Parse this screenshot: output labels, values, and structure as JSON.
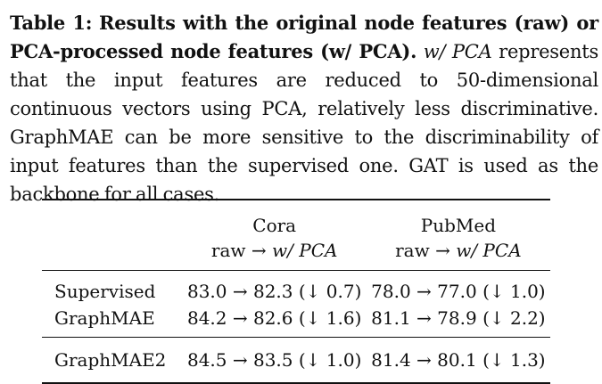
{
  "caption": {
    "label": "Table 1:",
    "bold_text": "Results with the original node features (raw) or PCA-processed node features (w/ PCA).",
    "em_text": "w/ PCA",
    "rest_text": "represents that the input features are reduced to 50-dimensional continuous vectors using PCA, relatively less discriminative. GraphMAE can be more sensitive to the discriminability of input features than the supervised one. GAT is used as the backbone for all cases."
  },
  "table": {
    "datasets": [
      "Cora",
      "PubMed"
    ],
    "sub_header": {
      "raw": "raw",
      "arrow": "→",
      "pca": "w/ PCA"
    },
    "rows": [
      {
        "method": "Supervised",
        "cora": "83.0 → 82.3 (↓ 0.7)",
        "pubmed": "78.0 → 77.0 (↓ 1.0)"
      },
      {
        "method": "GraphMAE",
        "cora": "84.2 → 82.6 (↓ 1.6)",
        "pubmed": "81.1 → 78.9 (↓ 2.2)"
      },
      {
        "method": "GraphMAE2",
        "cora": "84.5 → 83.5 (↓ 1.0)",
        "pubmed": "81.4 → 80.1 (↓ 1.3)"
      }
    ]
  }
}
